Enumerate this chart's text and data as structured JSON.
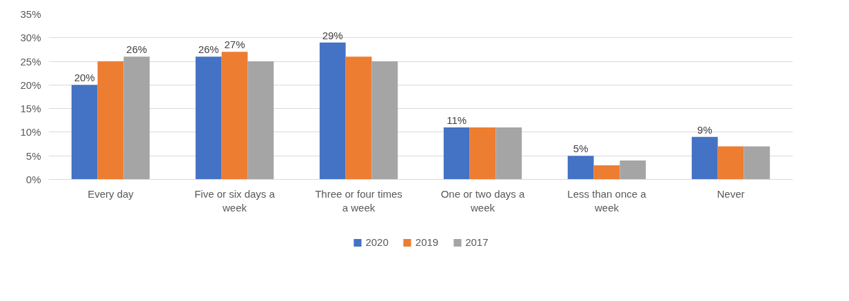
{
  "chart_data": {
    "type": "bar",
    "categories": [
      "Every day",
      "Five or six days a week",
      "Three or four times a week",
      "One or two days a week",
      "Less than once a week",
      "Never"
    ],
    "series": [
      {
        "name": "2020",
        "color": "#4472c4",
        "values": [
          20,
          26,
          29,
          11,
          5,
          9
        ],
        "value_labels": [
          "20%",
          "26%",
          "29%",
          "11%",
          "5%",
          "9%"
        ]
      },
      {
        "name": "2019",
        "color": "#ed7d31",
        "values": [
          25,
          27,
          26,
          11,
          3,
          7
        ],
        "value_labels": [
          null,
          "27%",
          null,
          null,
          null,
          null
        ]
      },
      {
        "name": "2017",
        "color": "#a5a5a5",
        "values": [
          26,
          25,
          25,
          11,
          4,
          7
        ],
        "value_labels": [
          "26%",
          null,
          null,
          null,
          null,
          null
        ]
      }
    ],
    "ylim": [
      0,
      35
    ],
    "yticks": [
      {
        "value": 0,
        "label": "0%"
      },
      {
        "value": 5,
        "label": "5%"
      },
      {
        "value": 10,
        "label": "10%"
      },
      {
        "value": 15,
        "label": "15%"
      },
      {
        "value": 20,
        "label": "20%"
      },
      {
        "value": 25,
        "label": "25%"
      },
      {
        "value": 30,
        "label": "30%"
      },
      {
        "value": 35,
        "label": "35%"
      }
    ],
    "grid": "y",
    "legend": "bottom"
  }
}
